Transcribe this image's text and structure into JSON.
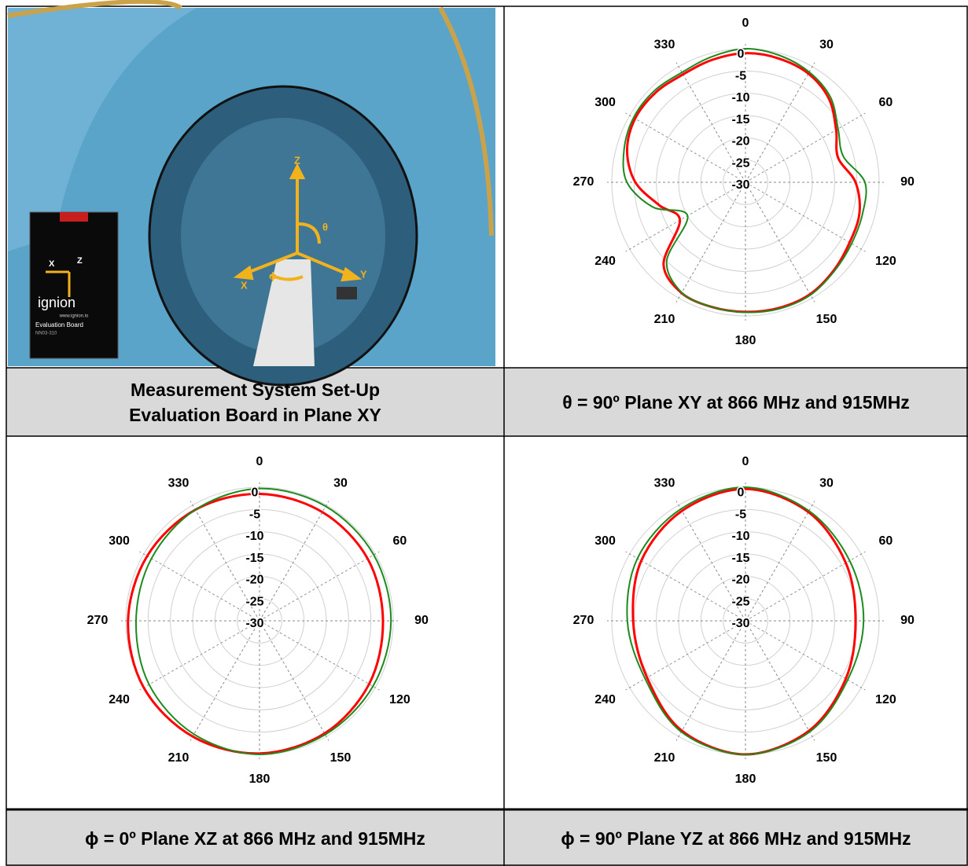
{
  "photo": {
    "axis_labels": [
      "Z",
      "Y",
      "X",
      "θ",
      "ϕ"
    ],
    "board": {
      "brand": "ignion",
      "title": "Evaluation Board",
      "model": "NN03-310",
      "url": "www.ignion.io",
      "axis_labels": [
        "X",
        "Z"
      ]
    },
    "caption": [
      "Measurement System Set-Up",
      "Evaluation Board in Plane XY"
    ]
  },
  "chart_data": [
    {
      "type": "polar",
      "title": "θ = 90º Plane XY at 866 MHz and 915MHz",
      "x": [
        0,
        15,
        30,
        45,
        60,
        75,
        90,
        105,
        120,
        135,
        150,
        165,
        180,
        195,
        210,
        225,
        240,
        255,
        270,
        285,
        300,
        315,
        330,
        345
      ],
      "xticks": [
        0,
        30,
        60,
        90,
        120,
        150,
        180,
        210,
        240,
        270,
        300,
        330
      ],
      "ylim": [
        -30,
        0
      ],
      "yticks": [
        -30,
        -25,
        -20,
        -15,
        -10,
        -5,
        0
      ],
      "grid": true,
      "series": [
        {
          "color": "#ff0000",
          "values": [
            -1,
            -1.2,
            -1.8,
            -3.5,
            -6.5,
            -8.5,
            -5.3,
            -3.5,
            -3,
            -2,
            -1,
            -0.8,
            -0.9,
            -1,
            -1.3,
            -4,
            -13,
            -10,
            -5.3,
            -2.5,
            -1.4,
            -1.5,
            -2,
            -1.5
          ]
        },
        {
          "color": "#1e8a1e",
          "values": [
            0,
            -0.5,
            -1.4,
            -3,
            -6,
            -7.3,
            -3.2,
            -2.8,
            -2.5,
            -1.8,
            -0.8,
            -0.6,
            -0.8,
            -1,
            -1.4,
            -5,
            -15,
            -8.5,
            -3.4,
            -1.8,
            -1,
            -1,
            -1.5,
            -0.8
          ]
        }
      ]
    },
    {
      "type": "polar",
      "title": "ϕ = 0º Plane XZ at 866 MHz and 915MHz",
      "x": [
        0,
        30,
        60,
        90,
        120,
        150,
        180,
        210,
        240,
        270,
        300,
        330
      ],
      "xticks": [
        0,
        30,
        60,
        90,
        120,
        150,
        180,
        210,
        240,
        270,
        300,
        330
      ],
      "ylim": [
        -30,
        0
      ],
      "yticks": [
        -30,
        -25,
        -20,
        -15,
        -10,
        -5,
        0
      ],
      "grid": true,
      "series": [
        {
          "color": "#ff0000",
          "values": [
            -1.5,
            -1.8,
            -2,
            -2.3,
            -1.6,
            -0.8,
            -0.2,
            0,
            0,
            -0.5,
            -0.9,
            -1.2
          ]
        },
        {
          "color": "#1e8a1e",
          "values": [
            -0.3,
            -0.3,
            -0.4,
            -0.5,
            -0.6,
            -0.5,
            0,
            -0.6,
            -1.4,
            -2.3,
            -2,
            -1.2
          ]
        }
      ]
    },
    {
      "type": "polar",
      "title": "ϕ = 90º Plane YZ at 866 MHz and 915MHz",
      "x": [
        0,
        30,
        60,
        90,
        120,
        150,
        180,
        210,
        240,
        270,
        300,
        330
      ],
      "xticks": [
        0,
        30,
        60,
        90,
        120,
        150,
        180,
        210,
        240,
        270,
        300,
        330
      ],
      "ylim": [
        -30,
        0
      ],
      "yticks": [
        -30,
        -25,
        -20,
        -15,
        -10,
        -5,
        0
      ],
      "grid": true,
      "series": [
        {
          "color": "#ff0000",
          "values": [
            -0.4,
            -1.8,
            -4,
            -5.3,
            -4,
            -1.5,
            0,
            -1.5,
            -4.5,
            -4.8,
            -3,
            -1.5
          ]
        },
        {
          "color": "#1e8a1e",
          "values": [
            0,
            -1.5,
            -3,
            -3.5,
            -3.5,
            -1.2,
            0,
            -1.2,
            -4,
            -3.5,
            -2,
            -1
          ]
        }
      ]
    }
  ]
}
